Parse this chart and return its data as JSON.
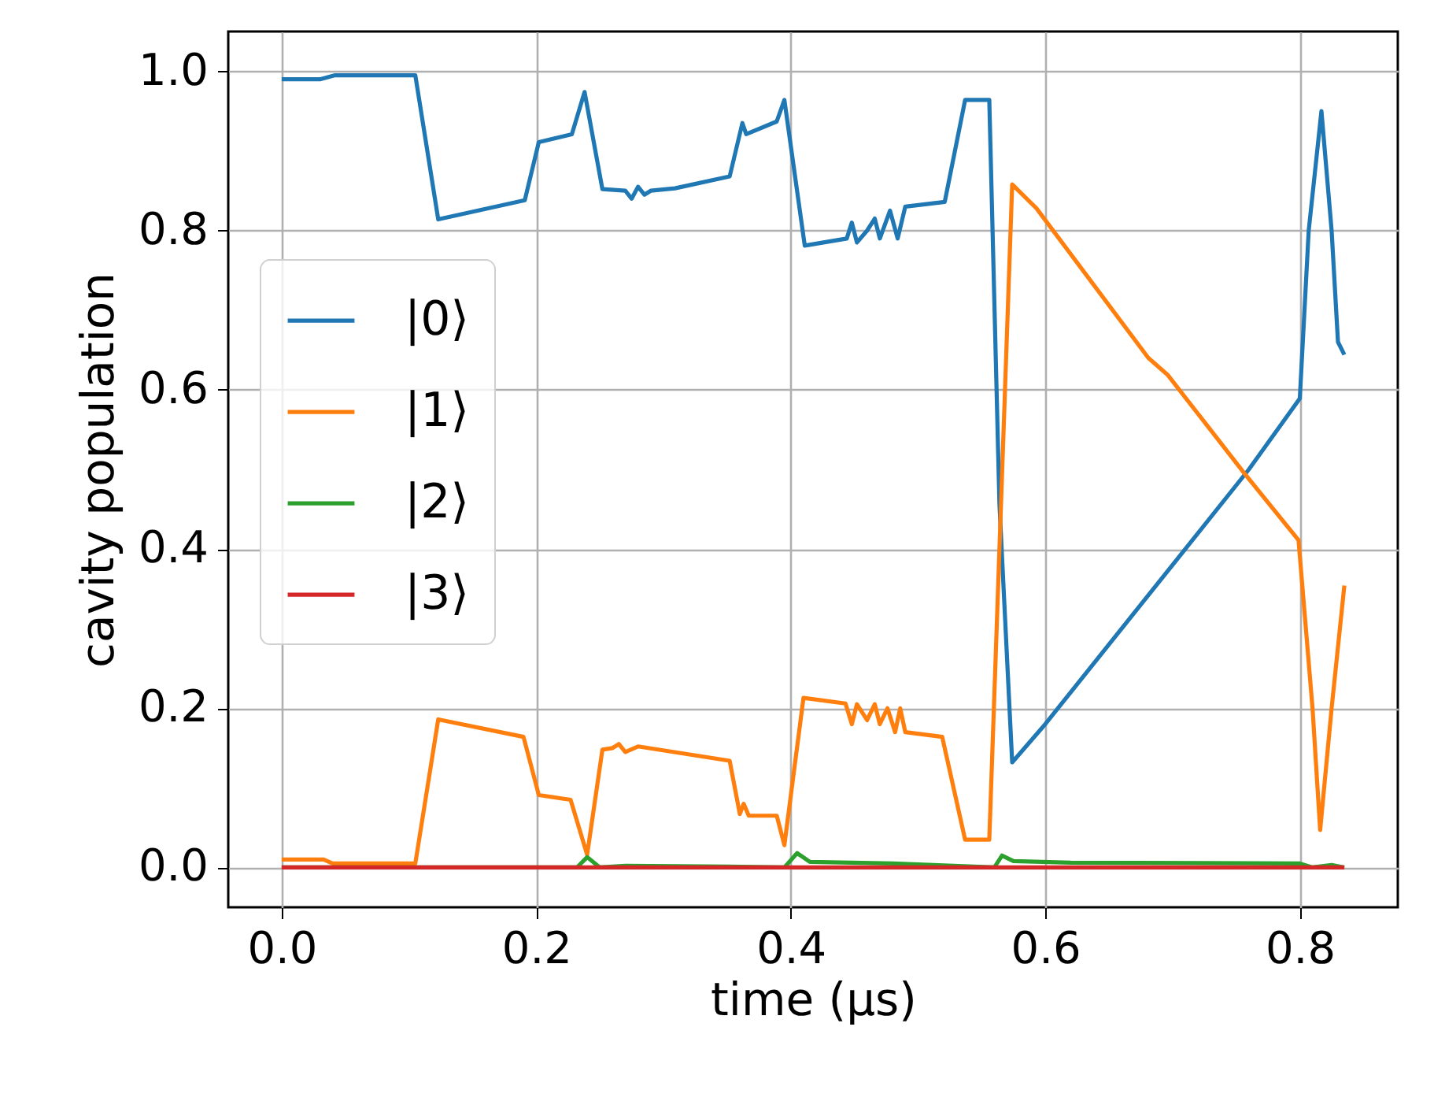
{
  "chart_data": {
    "type": "line",
    "xlabel": "time (μs)",
    "ylabel": "cavity population",
    "xlim": [
      -0.042,
      0.877
    ],
    "ylim": [
      -0.05,
      1.05
    ],
    "xticks": [
      {
        "value": 0,
        "label": "0.0"
      },
      0.2,
      0.4,
      0.6,
      0.8
    ],
    "yticks": [
      {
        "value": 0,
        "label": "0.0"
      },
      0.2,
      0.4,
      0.6,
      0.8,
      {
        "value": 1,
        "label": "1.0"
      }
    ],
    "grid": true,
    "legend": "center left",
    "marker": "none",
    "line_style": "solid",
    "series": [
      {
        "name": "|0⟩",
        "color": "#1f77b4",
        "x": [
          0,
          0.03,
          0.042,
          0.105,
          0.123,
          0.191,
          0.202,
          0.228,
          0.238,
          0.252,
          0.27,
          0.275,
          0.28,
          0.285,
          0.29,
          0.309,
          0.352,
          0.362,
          0.365,
          0.389,
          0.395,
          0.411,
          0.444,
          0.448,
          0.452,
          0.46,
          0.466,
          0.47,
          0.478,
          0.484,
          0.49,
          0.521,
          0.537,
          0.556,
          0.564,
          0.574,
          0.6,
          0.7,
          0.76,
          0.8,
          0.807,
          0.817,
          0.825,
          0.83,
          0.835
        ],
        "values": [
          0.99,
          0.99,
          0.995,
          0.995,
          0.814,
          0.838,
          0.911,
          0.921,
          0.974,
          0.852,
          0.85,
          0.84,
          0.855,
          0.845,
          0.85,
          0.853,
          0.868,
          0.935,
          0.921,
          0.937,
          0.964,
          0.781,
          0.79,
          0.81,
          0.785,
          0.8,
          0.815,
          0.79,
          0.825,
          0.79,
          0.83,
          0.836,
          0.964,
          0.964,
          0.456,
          0.132,
          0.18,
          0.38,
          0.5,
          0.589,
          0.8,
          0.95,
          0.8,
          0.66,
          0.644
        ]
      },
      {
        "name": "|1⟩",
        "color": "#ff7f0e",
        "x": [
          0,
          0.033,
          0.04,
          0.105,
          0.123,
          0.19,
          0.202,
          0.227,
          0.24,
          0.252,
          0.26,
          0.265,
          0.27,
          0.28,
          0.352,
          0.36,
          0.363,
          0.367,
          0.389,
          0.395,
          0.41,
          0.443,
          0.448,
          0.452,
          0.46,
          0.466,
          0.47,
          0.476,
          0.482,
          0.486,
          0.49,
          0.519,
          0.537,
          0.556,
          0.574,
          0.593,
          0.681,
          0.696,
          0.756,
          0.799,
          0.81,
          0.816,
          0.825,
          0.835
        ],
        "values": [
          0.01,
          0.01,
          0.005,
          0.005,
          0.186,
          0.164,
          0.091,
          0.085,
          0.016,
          0.148,
          0.15,
          0.155,
          0.145,
          0.152,
          0.134,
          0.067,
          0.08,
          0.065,
          0.065,
          0.028,
          0.213,
          0.206,
          0.18,
          0.205,
          0.185,
          0.205,
          0.18,
          0.2,
          0.17,
          0.2,
          0.17,
          0.164,
          0.035,
          0.035,
          0.858,
          0.828,
          0.64,
          0.619,
          0.496,
          0.411,
          0.2,
          0.047,
          0.2,
          0.354
        ]
      },
      {
        "name": "|2⟩",
        "color": "#2ca02c",
        "x": [
          0,
          0.232,
          0.24,
          0.25,
          0.27,
          0.35,
          0.395,
          0.405,
          0.415,
          0.48,
          0.56,
          0.566,
          0.575,
          0.62,
          0.8,
          0.81,
          0.825,
          0.835
        ],
        "values": [
          0,
          0,
          0.013,
          0,
          0.002,
          0.001,
          0,
          0.018,
          0.007,
          0.005,
          0,
          0.015,
          0.008,
          0.006,
          0.005,
          0,
          0.003,
          0
        ]
      },
      {
        "name": "|3⟩",
        "color": "#d62728",
        "x": [
          0,
          0.835
        ],
        "values": [
          0,
          0
        ]
      }
    ]
  }
}
